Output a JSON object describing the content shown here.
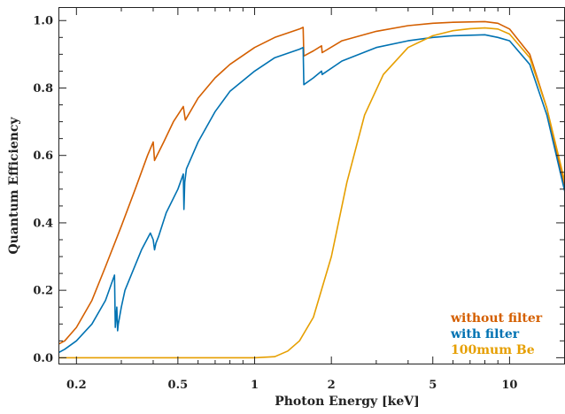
{
  "chart_data": {
    "type": "line",
    "title": "",
    "xlabel": "Photon Energy [keV]",
    "ylabel": "Quantum Efficiency",
    "xscale": "log",
    "xlim": [
      0.17,
      16.5
    ],
    "ylim": [
      -0.02,
      1.04
    ],
    "xticks": [
      {
        "value": 0.2,
        "label": "0.2"
      },
      {
        "value": 0.5,
        "label": "0.5"
      },
      {
        "value": 1,
        "label": "1"
      },
      {
        "value": 2,
        "label": "2"
      },
      {
        "value": 5,
        "label": "5"
      },
      {
        "value": 10,
        "label": "10"
      }
    ],
    "yticks": [
      {
        "value": 0.0,
        "label": "0.0"
      },
      {
        "value": 0.2,
        "label": "0.2"
      },
      {
        "value": 0.4,
        "label": "0.4"
      },
      {
        "value": 0.6,
        "label": "0.6"
      },
      {
        "value": 0.8,
        "label": "0.8"
      },
      {
        "value": 1.0,
        "label": "1.0"
      }
    ],
    "grid": false,
    "legend_position": "bottom-right",
    "series": [
      {
        "name": "without filter",
        "color": "#d45f00",
        "x": [
          0.17,
          0.18,
          0.2,
          0.23,
          0.26,
          0.3,
          0.34,
          0.38,
          0.4,
          0.405,
          0.44,
          0.48,
          0.525,
          0.535,
          0.6,
          0.7,
          0.8,
          1.0,
          1.2,
          1.5,
          1.55,
          1.56,
          1.7,
          1.83,
          1.84,
          2.2,
          3.0,
          4.0,
          5.0,
          6.0,
          8.0,
          9.0,
          10.0,
          12.0,
          14.0,
          16.5
        ],
        "y": [
          0.04,
          0.05,
          0.09,
          0.17,
          0.27,
          0.39,
          0.5,
          0.6,
          0.64,
          0.585,
          0.64,
          0.7,
          0.745,
          0.705,
          0.77,
          0.83,
          0.87,
          0.92,
          0.95,
          0.975,
          0.98,
          0.895,
          0.91,
          0.925,
          0.905,
          0.94,
          0.968,
          0.985,
          0.992,
          0.995,
          0.997,
          0.992,
          0.975,
          0.9,
          0.74,
          0.5
        ]
      },
      {
        "name": "with filter",
        "color": "#0072b2",
        "x": [
          0.17,
          0.18,
          0.2,
          0.23,
          0.26,
          0.282,
          0.284,
          0.288,
          0.29,
          0.292,
          0.3,
          0.31,
          0.33,
          0.36,
          0.39,
          0.4,
          0.405,
          0.41,
          0.42,
          0.45,
          0.5,
          0.525,
          0.528,
          0.532,
          0.54,
          0.6,
          0.7,
          0.8,
          1.0,
          1.2,
          1.5,
          1.55,
          1.56,
          1.7,
          1.83,
          1.84,
          2.2,
          3.0,
          4.0,
          5.0,
          6.0,
          8.0,
          9.0,
          10.0,
          12.0,
          14.0,
          16.5
        ],
        "y": [
          0.015,
          0.025,
          0.05,
          0.1,
          0.17,
          0.245,
          0.09,
          0.15,
          0.08,
          0.1,
          0.15,
          0.2,
          0.25,
          0.32,
          0.37,
          0.35,
          0.32,
          0.34,
          0.36,
          0.43,
          0.5,
          0.545,
          0.44,
          0.52,
          0.56,
          0.64,
          0.73,
          0.79,
          0.85,
          0.89,
          0.915,
          0.92,
          0.81,
          0.83,
          0.85,
          0.84,
          0.88,
          0.92,
          0.94,
          0.95,
          0.955,
          0.958,
          0.95,
          0.94,
          0.87,
          0.72,
          0.49
        ]
      },
      {
        "name": "100mum Be",
        "color": "#e69f00",
        "x": [
          0.17,
          0.5,
          1.0,
          1.2,
          1.35,
          1.5,
          1.7,
          2.0,
          2.3,
          2.7,
          3.2,
          4.0,
          5.0,
          6.0,
          7.0,
          8.0,
          9.0,
          10.0,
          12.0,
          14.0,
          16.5
        ],
        "y": [
          0.0,
          0.0,
          0.0,
          0.003,
          0.02,
          0.05,
          0.12,
          0.3,
          0.52,
          0.72,
          0.84,
          0.92,
          0.955,
          0.97,
          0.976,
          0.978,
          0.975,
          0.96,
          0.89,
          0.74,
          0.52
        ]
      }
    ]
  }
}
